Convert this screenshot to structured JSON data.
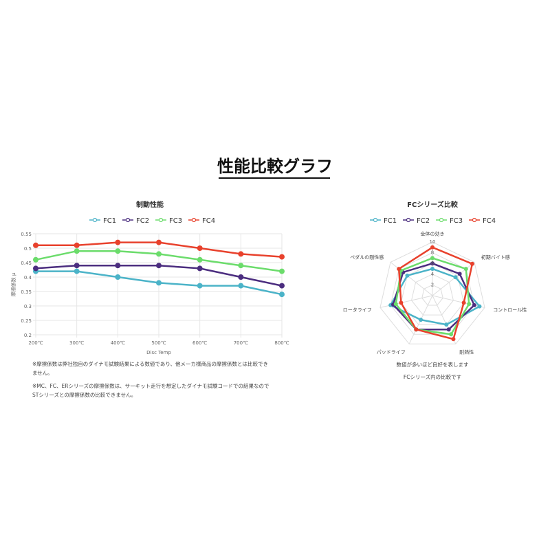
{
  "page_title": "性能比較グラフ",
  "notes": [
    "※摩擦係数は弊社独自のダイナモ試験結果による数値であり、他メーカ様商品の摩擦係数とは比較できません。",
    "※MC、FC、ERシリーズの摩擦係数は、サーキット走行を想定したダイナモ試験コードでの結果なのでSTシリーズとの摩擦係数の比較できません。"
  ],
  "radar_notes": [
    "数値が多いほど良好を表します",
    "FCシリーズ内の比較です"
  ],
  "chart_data": [
    {
      "type": "line",
      "title": "制動性能",
      "xlabel": "Disc Temp",
      "ylabel": "摩擦係数 μ",
      "ylim": [
        0.2,
        0.55
      ],
      "yticks": [
        "0.2",
        "0.25",
        "0.3",
        "0.35",
        "0.4",
        "0.45",
        "0.5",
        "0.55"
      ],
      "categories": [
        "200℃",
        "300℃",
        "400℃",
        "500℃",
        "600℃",
        "700℃",
        "800℃"
      ],
      "legend": "top",
      "grid": true,
      "series": [
        {
          "name": "FC1",
          "color": "#4bb3c8",
          "values": [
            0.42,
            0.42,
            0.4,
            0.38,
            0.37,
            0.37,
            0.34
          ]
        },
        {
          "name": "FC2",
          "color": "#4b2d7f",
          "values": [
            0.43,
            0.44,
            0.44,
            0.44,
            0.43,
            0.4,
            0.37
          ]
        },
        {
          "name": "FC3",
          "color": "#6bdc6b",
          "values": [
            0.46,
            0.49,
            0.49,
            0.48,
            0.46,
            0.44,
            0.42
          ]
        },
        {
          "name": "FC4",
          "color": "#e8412c",
          "values": [
            0.51,
            0.51,
            0.52,
            0.52,
            0.5,
            0.48,
            0.47
          ]
        }
      ]
    },
    {
      "type": "radar",
      "title": "FCシリーズ比較",
      "range": [
        0,
        10
      ],
      "ticks": [
        "2",
        "4",
        "6",
        "8",
        "10"
      ],
      "legend": "top",
      "categories": [
        "全体の効き",
        "初期バイト感",
        "コントロール性",
        "耐熱性",
        "パッドライフ",
        "ロータライフ",
        "ペダルの剛性感"
      ],
      "series": [
        {
          "name": "FC1",
          "color": "#4bb3c8",
          "values": [
            5,
            5.5,
            9,
            6,
            5,
            8,
            6
          ]
        },
        {
          "name": "FC2",
          "color": "#4b2d7f",
          "values": [
            6,
            6.5,
            8,
            7,
            7,
            7.5,
            7
          ]
        },
        {
          "name": "FC3",
          "color": "#6bdc6b",
          "values": [
            7,
            8,
            7,
            8,
            7,
            7,
            7.5
          ]
        },
        {
          "name": "FC4",
          "color": "#e8412c",
          "values": [
            9,
            9.5,
            6,
            9,
            7,
            6,
            8
          ]
        }
      ]
    }
  ]
}
